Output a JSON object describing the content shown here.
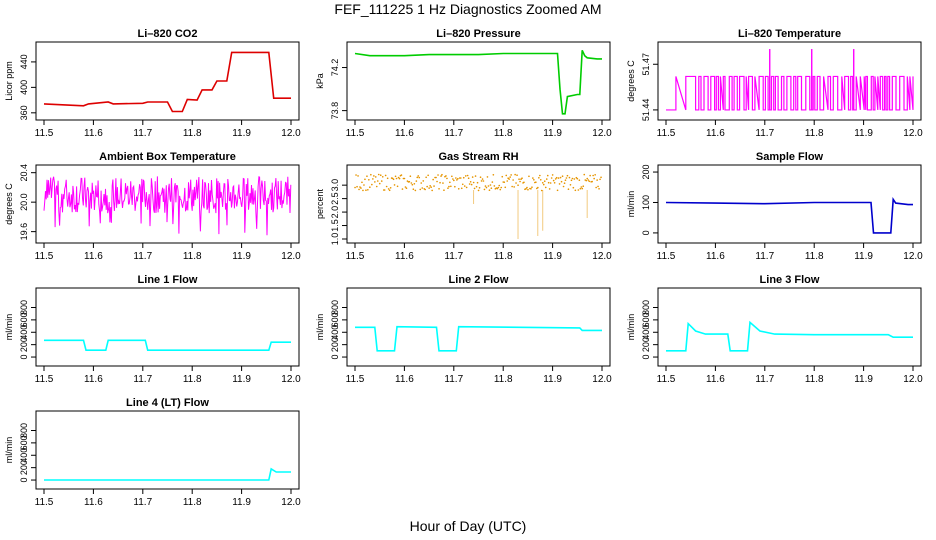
{
  "title": "FEF_111225  1 Hz Diagnostics Zoomed AM",
  "xlabel": "Hour of Day (UTC)",
  "colors": {
    "red": "#dd0000",
    "green": "#00cc00",
    "magenta": "#ff00ff",
    "orange": "#e69500",
    "blue": "#0000cc",
    "cyan": "#00ffff"
  },
  "chart_data": [
    {
      "type": "line",
      "title": "Li–820 CO2",
      "ylabel": "Licor ppm",
      "xlim": [
        11.5,
        12.0
      ],
      "ylim": [
        355,
        465
      ],
      "xticks": [
        "11.5",
        "11.6",
        "11.7",
        "11.8",
        "11.9",
        "12.0"
      ],
      "yticks": [
        "360",
        "400",
        "440"
      ],
      "color": "red",
      "series": [
        {
          "x": [
            11.5,
            11.58,
            11.59,
            11.63,
            11.64,
            11.7,
            11.71,
            11.75,
            11.76,
            11.78,
            11.79,
            11.81,
            11.82,
            11.84,
            11.85,
            11.87,
            11.88,
            11.955,
            11.965,
            11.975,
            12.0
          ],
          "y": [
            374,
            371,
            374,
            377,
            374,
            375,
            377,
            377,
            362,
            362,
            381,
            380,
            396,
            396,
            410,
            410,
            455,
            455,
            383,
            383,
            383
          ]
        }
      ]
    },
    {
      "type": "line",
      "title": "Li–820 Pressure",
      "ylabel": "kPa",
      "xlim": [
        11.5,
        12.0
      ],
      "ylim": [
        73.75,
        74.4
      ],
      "xticks": [
        "11.5",
        "11.6",
        "11.7",
        "11.8",
        "11.9",
        "12.0"
      ],
      "yticks": [
        "73.8",
        "74.2"
      ],
      "color": "green",
      "series": [
        {
          "x": [
            11.5,
            11.53,
            11.56,
            11.6,
            11.65,
            11.7,
            11.75,
            11.8,
            11.85,
            11.91,
            11.915,
            11.92,
            11.925,
            11.93,
            11.95,
            11.955,
            11.96,
            11.965,
            11.97,
            11.99,
            12.0
          ],
          "y": [
            74.33,
            74.31,
            74.31,
            74.31,
            74.32,
            74.32,
            74.32,
            74.33,
            74.33,
            74.33,
            74.0,
            73.77,
            73.77,
            73.93,
            73.95,
            73.95,
            74.36,
            74.31,
            74.29,
            74.28,
            74.28
          ]
        }
      ]
    },
    {
      "type": "line",
      "title": "Li–820 Temperature",
      "ylabel": "degrees C",
      "xlim": [
        11.5,
        12.0
      ],
      "ylim": [
        51.436,
        51.482
      ],
      "xticks": [
        "11.5",
        "11.6",
        "11.7",
        "11.8",
        "11.9",
        "12.0"
      ],
      "yticks": [
        "51.44",
        "51.47"
      ],
      "color": "magenta",
      "series": [
        {
          "levels": [
            51.44,
            51.462
          ],
          "spikes": [
            11.71,
            11.795,
            11.88
          ],
          "spike_top": 51.48
        }
      ]
    },
    {
      "type": "line",
      "title": "Ambient Box Temperature",
      "ylabel": "degrees C",
      "xlim": [
        11.5,
        12.0
      ],
      "ylim": [
        19.5,
        20.45
      ],
      "xticks": [
        "11.5",
        "11.6",
        "11.7",
        "11.8",
        "11.9",
        "12.0"
      ],
      "yticks": [
        "19.6",
        "20.0",
        "20.4"
      ],
      "color": "magenta",
      "series": [
        {
          "band": [
            19.85,
            20.35
          ],
          "dips_to": 19.55
        }
      ]
    },
    {
      "type": "scatter",
      "title": "Gas Stream RH",
      "ylabel": "percent",
      "xlim": [
        11.5,
        12.0
      ],
      "ylim": [
        1.0,
        3.6
      ],
      "xticks": [
        "11.5",
        "11.6",
        "11.7",
        "11.8",
        "11.9",
        "12.0"
      ],
      "yticks": [
        "1.0",
        "1.5",
        "2.0",
        "2.5",
        "3.0"
      ],
      "color": "orange",
      "series": [
        {
          "band": [
            2.8,
            3.4
          ],
          "drops": [
            [
              11.74,
              2.3
            ],
            [
              11.83,
              1.0
            ],
            [
              11.87,
              1.1
            ],
            [
              11.88,
              1.3
            ],
            [
              11.97,
              1.8
            ]
          ]
        }
      ]
    },
    {
      "type": "line",
      "title": "Sample Flow",
      "ylabel": "ml/min",
      "xlim": [
        11.5,
        12.0
      ],
      "ylim": [
        -20,
        210
      ],
      "xticks": [
        "11.5",
        "11.6",
        "11.7",
        "11.8",
        "11.9",
        "12.0"
      ],
      "yticks": [
        "0",
        "100",
        "200"
      ],
      "color": "blue",
      "series": [
        {
          "x": [
            11.5,
            11.6,
            11.7,
            11.8,
            11.915,
            11.92,
            11.955,
            11.96,
            11.965,
            11.99,
            12.0
          ],
          "y": [
            100,
            98,
            96,
            100,
            100,
            0,
            0,
            110,
            98,
            93,
            93
          ]
        }
      ]
    },
    {
      "type": "line",
      "title": "Line 1 Flow",
      "ylabel": "ml/min",
      "xlim": [
        11.5,
        12.0
      ],
      "ylim": [
        -80,
        1050
      ],
      "xticks": [
        "11.5",
        "11.6",
        "11.7",
        "11.8",
        "11.9",
        "12.0"
      ],
      "yticks": [
        "0",
        "200",
        "400",
        "600",
        "800"
      ],
      "color": "cyan",
      "series": [
        {
          "x": [
            11.5,
            11.58,
            11.585,
            11.625,
            11.63,
            11.705,
            11.71,
            11.955,
            11.96,
            12.0
          ],
          "y": [
            270,
            270,
            110,
            110,
            270,
            270,
            110,
            110,
            240,
            240
          ]
        }
      ]
    },
    {
      "type": "line",
      "title": "Line 2 Flow",
      "ylabel": "ml/min",
      "xlim": [
        11.5,
        12.0
      ],
      "ylim": [
        -80,
        1050
      ],
      "xticks": [
        "11.5",
        "11.6",
        "11.7",
        "11.8",
        "11.9",
        "12.0"
      ],
      "yticks": [
        "0",
        "200",
        "400",
        "600",
        "800"
      ],
      "color": "cyan",
      "series": [
        {
          "x": [
            11.5,
            11.54,
            11.545,
            11.58,
            11.585,
            11.665,
            11.67,
            11.705,
            11.71,
            11.955,
            11.96,
            12.0
          ],
          "y": [
            480,
            480,
            100,
            100,
            490,
            480,
            100,
            100,
            490,
            470,
            430,
            430
          ]
        }
      ]
    },
    {
      "type": "line",
      "title": "Line 3 Flow",
      "ylabel": "ml/min",
      "xlim": [
        11.5,
        12.0
      ],
      "ylim": [
        -80,
        1050
      ],
      "xticks": [
        "11.5",
        "11.6",
        "11.7",
        "11.8",
        "11.9",
        "12.0"
      ],
      "yticks": [
        "0",
        "200",
        "400",
        "600",
        "800"
      ],
      "color": "cyan",
      "series": [
        {
          "x": [
            11.5,
            11.54,
            11.545,
            11.56,
            11.58,
            11.625,
            11.63,
            11.665,
            11.67,
            11.69,
            11.72,
            11.8,
            11.95,
            11.96,
            12.0
          ],
          "y": [
            100,
            100,
            540,
            420,
            370,
            370,
            100,
            100,
            560,
            420,
            370,
            360,
            360,
            320,
            320
          ]
        }
      ]
    },
    {
      "type": "line",
      "title": "Line 4 (LT) Flow",
      "ylabel": "ml/min",
      "xlim": [
        11.5,
        12.0
      ],
      "ylim": [
        -80,
        1050
      ],
      "xticks": [
        "11.5",
        "11.6",
        "11.7",
        "11.8",
        "11.9",
        "12.0"
      ],
      "yticks": [
        "0",
        "200",
        "400",
        "600",
        "800"
      ],
      "color": "cyan",
      "series": [
        {
          "x": [
            11.5,
            11.7,
            11.955,
            11.96,
            11.97,
            12.0
          ],
          "y": [
            0,
            0,
            0,
            180,
            130,
            130
          ]
        }
      ]
    }
  ]
}
